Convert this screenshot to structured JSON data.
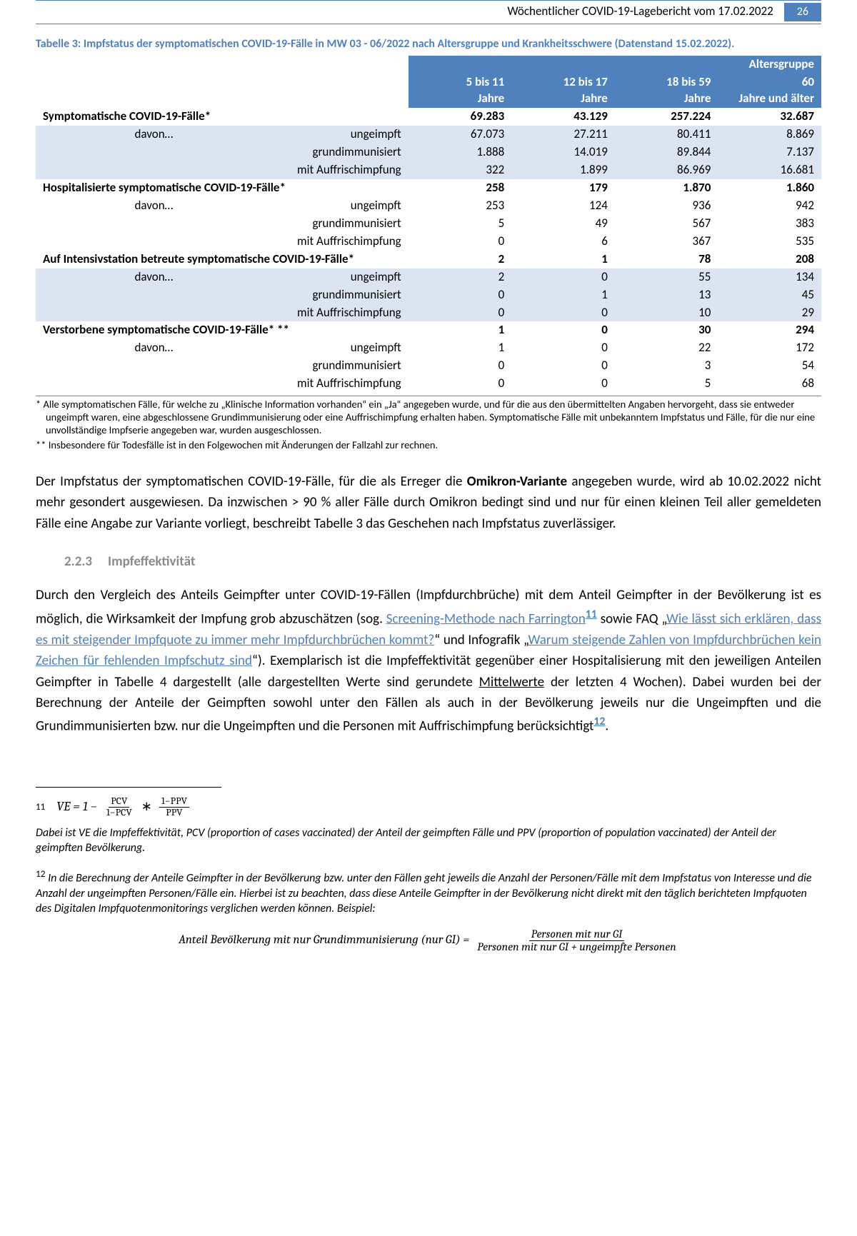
{
  "header": {
    "title": "Wöchentlicher COVID-19-Lagebericht vom 17.02.2022",
    "page": "26"
  },
  "caption": "Tabelle 3: Impfstatus der symptomatischen COVID-19-Fälle in MW 03 - 06/2022 nach Altersgruppe und Krankheitsschwere (Datenstand 15.02.2022).",
  "table": {
    "supercol": "Altersgruppe",
    "cols": [
      "5 bis 11 Jahre",
      "12 bis 17 Jahre",
      "18 bis 59 Jahre",
      "60 Jahre und älter"
    ],
    "davon": "davon…",
    "subrows": [
      "ungeimpft",
      "grundimmunisiert",
      "mit Auffrischimpfung"
    ],
    "sections": [
      {
        "title": "Symptomatische COVID-19-Fälle*",
        "head": [
          "69.283",
          "43.129",
          "257.224",
          "32.687"
        ],
        "rows": [
          [
            "67.073",
            "27.211",
            "80.411",
            "8.869"
          ],
          [
            "1.888",
            "14.019",
            "89.844",
            "7.137"
          ],
          [
            "322",
            "1.899",
            "86.969",
            "16.681"
          ]
        ],
        "shade": true
      },
      {
        "title": "Hospitalisierte symptomatische COVID-19-Fälle*",
        "head": [
          "258",
          "179",
          "1.870",
          "1.860"
        ],
        "rows": [
          [
            "253",
            "124",
            "936",
            "942"
          ],
          [
            "5",
            "49",
            "567",
            "383"
          ],
          [
            "0",
            "6",
            "367",
            "535"
          ]
        ],
        "shade": false
      },
      {
        "title": "Auf Intensivstation betreute symptomatische COVID-19-Fälle*",
        "head": [
          "2",
          "1",
          "78",
          "208"
        ],
        "rows": [
          [
            "2",
            "0",
            "55",
            "134"
          ],
          [
            "0",
            "1",
            "13",
            "45"
          ],
          [
            "0",
            "0",
            "10",
            "29"
          ]
        ],
        "shade": true
      },
      {
        "title": "Verstorbene symptomatische COVID-19-Fälle* **",
        "head": [
          "1",
          "0",
          "30",
          "294"
        ],
        "rows": [
          [
            "1",
            "0",
            "22",
            "172"
          ],
          [
            "0",
            "0",
            "3",
            "54"
          ],
          [
            "0",
            "0",
            "5",
            "68"
          ]
        ],
        "shade": false
      }
    ]
  },
  "footnotes": {
    "f1": "*  Alle symptomatischen Fälle, für welche zu „Klinische Information vorhanden“ ein „Ja“ angegeben wurde, und für die aus den übermittelten Angaben hervorgeht, dass sie entweder ungeimpft waren, eine abgeschlossene Grundimmunisierung oder eine Auffrischimpfung erhalten haben. Symptomatische Fälle mit unbekanntem Impfstatus und Fälle, für die nur eine unvollständige Impfserie angegeben war, wurden ausgeschlossen.",
    "f2": "** Insbesondere für Todesfälle ist in den Folgewochen mit Änderungen der Fallzahl zur rechnen."
  },
  "body": {
    "p1a": "Der Impfstatus der symptomatischen COVID-19-Fälle, für die als Erreger die ",
    "p1b": "Omikron-Variante",
    "p1c": " angegeben wurde, wird ab 10.02.2022 nicht mehr gesondert ausgewiesen. Da inzwischen > 90 % aller Fälle durch Omikron bedingt sind und nur für einen kleinen Teil aller gemeldeten Fälle eine Angabe zur Variante vorliegt, beschreibt Tabelle 3 das Geschehen nach Impfstatus zuverlässiger.",
    "sec_num": "2.2.3",
    "sec_title": "Impfeffektivität",
    "p2a": "Durch den Vergleich des Anteils Geimpfter unter COVID-19-Fällen (Impfdurchbrüche) mit dem Anteil Geimpfter in der Bevölkerung ist es möglich, die Wirksamkeit der Impfung grob abzuschätzen (sog. ",
    "link1": "Screening-Methode nach Farrington",
    "sup11": "11",
    "p2b": " sowie FAQ „",
    "link2": "Wie lässt sich erklären, dass es mit steigender Impfquote zu immer mehr Impfdurchbrüchen kommt?",
    "p2c": "“ und Infografik „",
    "link3": "Warum steigende Zahlen von Impfdurchbrüchen kein Zeichen für fehlenden Impfschutz sind",
    "p2d": "“). Exemplarisch ist die Impfeffektivität gegenüber einer Hospitalisierung mit den jeweiligen Anteilen Geimpfter in Tabelle 4 dargestellt (alle dargestellten Werte sind gerundete ",
    "p2mw": "Mittelwerte",
    "p2e": " der letzten 4 Wochen). Dabei wurden bei der Berechnung der Anteile der Geimpften sowohl unter den Fällen als auch in der Bevölkerung jeweils nur die Ungeimpften und die Grundimmunisierten bzw. nur die Ungeimpften und die Personen mit Auffrischimpfung berücksichtigt",
    "sup12": "12",
    "p2f": "."
  },
  "formula": {
    "sup": "11",
    "lhs": "VE = 1 −",
    "num1": "PCV",
    "den1": "1−PCV",
    "mul": " ∗ ",
    "num2": "1−PPV",
    "den2": "PPV",
    "note": "Dabei ist VE die Impfeffektivität, PCV (proportion of cases vaccinated) der Anteil der geimpften Fälle und PPV (proportion of population vaccinated) der Anteil der geimpften Bevölkerung.",
    "sup2": "12",
    "note2": " In die Berechnung der Anteile Geimpfter in der Bevölkerung bzw. unter den Fällen geht jeweils die Anzahl der Personen/Fälle mit dem Impfstatus von Interesse und die Anzahl der ungeimpften Personen/Fälle ein. Hierbei ist zu beachten, dass diese Anteile Geimpfter in der Bevölkerung nicht direkt mit den täglich berichteten Impfquoten des Digitalen Impfquotenmonitorings verglichen werden können. Beispiel:",
    "eq2_lhs": "Anteil Bevölkerung mit nur Grundimmunisierung (nur GI) =",
    "eq2_num": "Personen mit nur GI",
    "eq2_den": "Personen mit nur GI + ungeimpfte Personen"
  }
}
